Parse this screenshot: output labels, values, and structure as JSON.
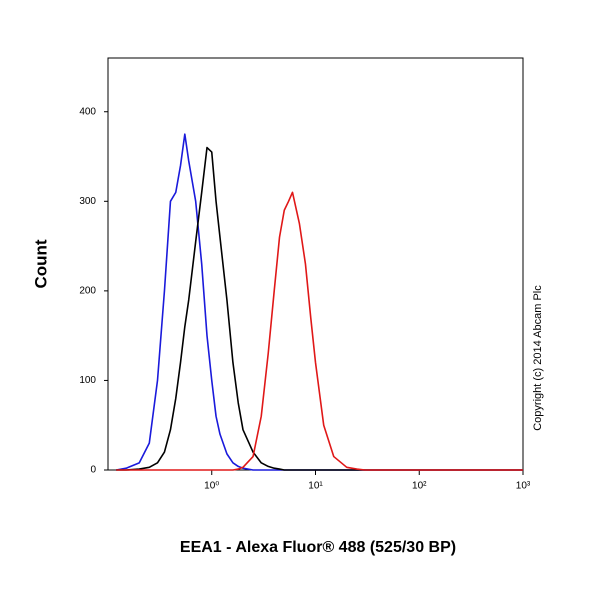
{
  "chart_data": {
    "type": "line",
    "x_label": "EEA1 - Alexa Fluor® 488 (525/30 BP)",
    "y_label": "Count",
    "annotation": "Copyright (c) 2014 Abcam Plc",
    "x_scale": "log",
    "x": [
      0.12,
      0.15,
      0.2,
      0.25,
      0.3,
      0.35,
      0.4,
      0.45,
      0.5,
      0.55,
      0.6,
      0.7,
      0.8,
      0.9,
      1,
      1.1,
      1.2,
      1.4,
      1.6,
      1.8,
      2,
      2.5,
      3,
      3.5,
      4,
      4.5,
      5,
      5.5,
      6,
      7,
      8,
      9,
      10,
      12,
      15,
      20,
      25,
      30,
      50,
      100,
      1000
    ],
    "series": [
      {
        "color": "#1a1adb",
        "values": [
          0,
          2,
          8,
          30,
          100,
          200,
          300,
          310,
          340,
          375,
          345,
          300,
          230,
          150,
          100,
          60,
          40,
          18,
          8,
          4,
          2,
          0,
          0,
          0,
          0,
          0,
          0,
          0,
          0,
          0,
          0,
          0,
          0,
          0,
          0,
          0,
          0,
          0,
          0,
          0,
          0
        ]
      },
      {
        "color": "#000000",
        "values": [
          0,
          0,
          1,
          3,
          8,
          20,
          45,
          80,
          120,
          160,
          190,
          255,
          310,
          360,
          355,
          300,
          260,
          190,
          120,
          75,
          45,
          20,
          8,
          4,
          2,
          1,
          0,
          0,
          0,
          0,
          0,
          0,
          0,
          0,
          0,
          0,
          0,
          0,
          0,
          0,
          0
        ]
      },
      {
        "color": "#e01818",
        "values": [
          0,
          0,
          0,
          0,
          0,
          0,
          0,
          0,
          0,
          0,
          0,
          0,
          0,
          0,
          0,
          0,
          0,
          0,
          0,
          1,
          3,
          15,
          60,
          130,
          200,
          260,
          290,
          300,
          310,
          275,
          230,
          170,
          120,
          50,
          15,
          3,
          1,
          0,
          0,
          0,
          0
        ]
      }
    ],
    "xlim": [
      0.1,
      1000
    ],
    "xticks": [
      {
        "value": 1,
        "label": "10⁰"
      },
      {
        "value": 10,
        "label": "10¹"
      },
      {
        "value": 100,
        "label": "10²"
      },
      {
        "value": 1000,
        "label": "10³"
      }
    ],
    "ylim": [
      0,
      460
    ],
    "yticks": [
      0,
      100,
      200,
      300,
      400
    ]
  }
}
